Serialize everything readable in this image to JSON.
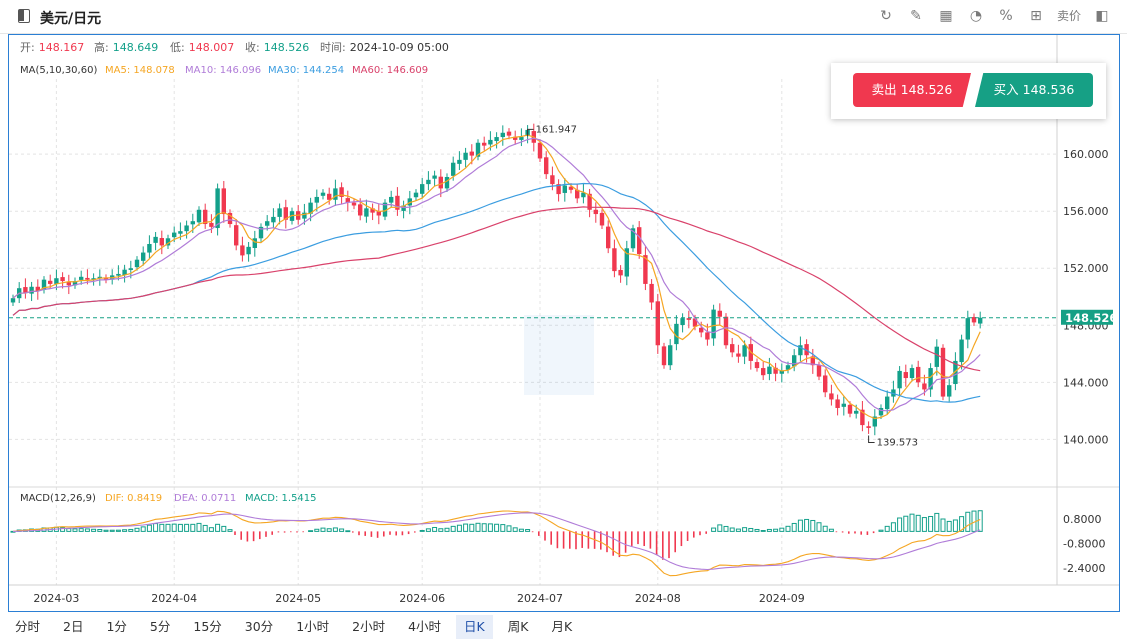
{
  "header": {
    "title": "美元/日元",
    "tools": [
      "refresh-icon",
      "draw-icon",
      "chart-type-icon",
      "pie-icon",
      "percent-icon",
      "grid-icon"
    ],
    "sellbuy_label": "卖价"
  },
  "ohlc": {
    "open_label": "开:",
    "open": "148.167",
    "high_label": "高:",
    "high": "148.649",
    "low_label": "低:",
    "low": "148.007",
    "close_label": "收:",
    "close": "148.526",
    "time_label": "时间:",
    "time": "2024-10-09 05:00"
  },
  "ma": {
    "params": "MA(5,10,30,60)",
    "ma5": "MA5: 148.078",
    "ma10": "MA10: 146.096",
    "ma30": "MA30: 144.254",
    "ma60": "MA60: 146.609"
  },
  "macd_info": {
    "params": "MACD(12,26,9)",
    "dif": "DIF: 0.8419",
    "dea": "DEA: 0.0711",
    "macd": "MACD: 1.5415"
  },
  "trade": {
    "sell_label": "卖出 148.526",
    "buy_label": "买入 148.536"
  },
  "annotations": {
    "high_label": "161.947",
    "low_label": "139.573"
  },
  "current_price": "148.526",
  "periods": [
    "分时",
    "2日",
    "1分",
    "5分",
    "15分",
    "30分",
    "1小时",
    "2小时",
    "4小时",
    "日K",
    "周K",
    "月K"
  ],
  "active_period": "日K",
  "colors": {
    "up": "#13a08a",
    "down": "#f0384f",
    "ma5": "#f5a623",
    "ma10": "#b07cd8",
    "ma30": "#3b9de0",
    "ma60": "#d9426b",
    "dif": "#f5a623",
    "dea": "#b07cd8",
    "accent": "#2b7fd4"
  },
  "chart_data": [
    {
      "type": "candlestick",
      "x_labels": [
        "2024-03",
        "2024-04",
        "2024-05",
        "2024-06",
        "2024-07",
        "2024-08",
        "2024-09"
      ],
      "y_ticks": [
        "160.000",
        "156.000",
        "152.000",
        "148.000",
        "144.000",
        "140.000"
      ],
      "ylim": [
        137.5,
        164.5
      ],
      "grid": true,
      "closes": [
        149.9,
        150.6,
        150.3,
        150.7,
        150.4,
        151.2,
        150.9,
        151.3,
        151.1,
        150.8,
        151.1,
        151.4,
        151.3,
        151.3,
        151.4,
        151.2,
        151.5,
        151.6,
        151.9,
        152.0,
        152.6,
        153.1,
        153.7,
        154.2,
        153.6,
        154.1,
        154.5,
        154.6,
        155.0,
        155.3,
        156.1,
        155.1,
        154.9,
        157.6,
        155.8,
        155.1,
        153.6,
        152.9,
        153.5,
        154.1,
        154.9,
        155.3,
        155.6,
        156.2,
        155.4,
        156.0,
        155.4,
        155.9,
        156.6,
        157.0,
        157.3,
        156.8,
        157.6,
        157.0,
        156.6,
        156.4,
        155.7,
        156.2,
        155.9,
        155.7,
        156.6,
        157.0,
        156.1,
        156.4,
        156.9,
        157.3,
        157.9,
        158.2,
        158.5,
        157.6,
        158.4,
        159.4,
        159.6,
        160.1,
        159.9,
        160.8,
        160.6,
        161.0,
        161.2,
        161.5,
        161.3,
        161.0,
        161.2,
        161.7,
        160.8,
        159.7,
        158.6,
        157.9,
        157.2,
        157.8,
        157.5,
        156.9,
        157.3,
        156.1,
        155.8,
        155.0,
        153.4,
        151.8,
        151.5,
        153.4,
        154.8,
        153.0,
        150.9,
        149.6,
        146.6,
        145.2,
        146.6,
        148.1,
        148.5,
        148.4,
        147.9,
        147.5,
        147.0,
        149.1,
        148.6,
        146.6,
        146.1,
        145.8,
        146.6,
        145.5,
        145.0,
        144.5,
        145.1,
        144.6,
        144.8,
        145.2,
        145.9,
        146.6,
        145.9,
        145.2,
        144.4,
        143.3,
        142.8,
        142.2,
        142.5,
        141.8,
        142.0,
        141.0,
        140.9,
        141.6,
        142.2,
        143.0,
        143.5,
        144.8,
        144.3,
        145.0,
        144.0,
        143.5,
        145.0,
        146.5,
        143.0,
        143.8,
        145.5,
        147.0,
        148.5,
        148.2,
        148.526
      ],
      "ma_latest": {
        "MA5": 148.078,
        "MA10": 146.096,
        "MA30": 144.254,
        "MA60": 146.609
      },
      "high_marker": 161.947,
      "low_marker": 139.573,
      "current_price": 148.526
    },
    {
      "type": "macd",
      "params": [
        12,
        26,
        9
      ],
      "y_ticks": [
        "0.8000",
        "-0.8000",
        "-2.4000"
      ],
      "latest": {
        "DIF": 0.8419,
        "DEA": 0.0711,
        "MACD": 1.5415
      }
    }
  ]
}
